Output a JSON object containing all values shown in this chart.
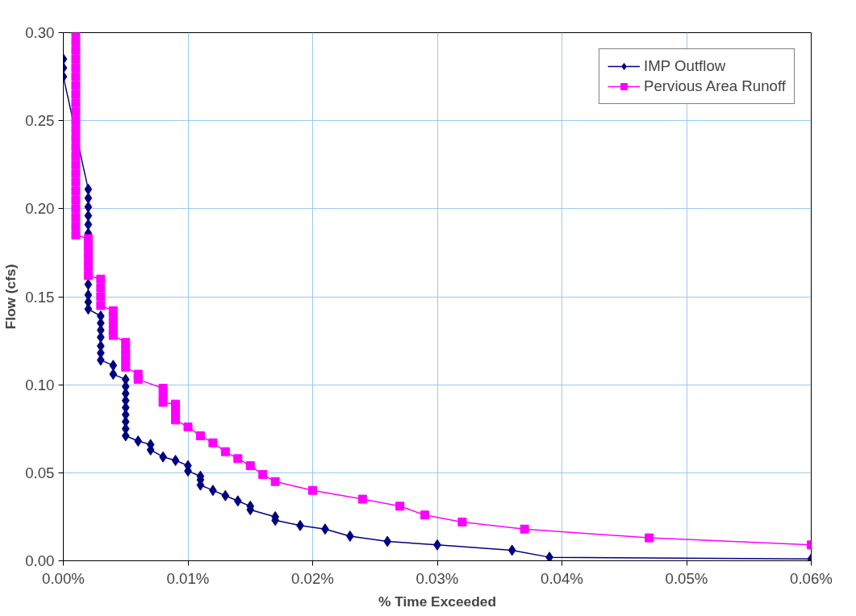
{
  "chart_data": {
    "type": "line",
    "xlabel": "% Time Exceeded",
    "ylabel": "Flow (cfs)",
    "xlim": [
      0,
      0.06
    ],
    "ylim": [
      0,
      0.3
    ],
    "xticks": [
      {
        "value": 0,
        "label": "0.00%"
      },
      {
        "value": 0.01,
        "label": "0.01%"
      },
      {
        "value": 0.02,
        "label": "0.02%"
      },
      {
        "value": 0.03,
        "label": "0.03%"
      },
      {
        "value": 0.04,
        "label": "0.04%"
      },
      {
        "value": 0.05,
        "label": "0.05%"
      },
      {
        "value": 0.06,
        "label": "0.06%"
      }
    ],
    "yticks": [
      {
        "value": 0,
        "label": "0.00"
      },
      {
        "value": 0.05,
        "label": "0.05"
      },
      {
        "value": 0.1,
        "label": "0.10"
      },
      {
        "value": 0.15,
        "label": "0.15"
      },
      {
        "value": 0.2,
        "label": "0.20"
      },
      {
        "value": 0.25,
        "label": "0.25"
      },
      {
        "value": 0.3,
        "label": "0.30"
      }
    ],
    "grid": true,
    "legend": "top right",
    "line_style": "solid",
    "series": [
      {
        "name": "IMP Outflow",
        "color": "#000080",
        "marker": "diamond",
        "x": [
          0,
          0,
          0,
          0.002,
          0.002,
          0.002,
          0.002,
          0.002,
          0.002,
          0.002,
          0.002,
          0.002,
          0.002,
          0.003,
          0.003,
          0.003,
          0.003,
          0.003,
          0.003,
          0.003,
          0.004,
          0.004,
          0.005,
          0.005,
          0.005,
          0.005,
          0.005,
          0.005,
          0.005,
          0.005,
          0.005,
          0.006,
          0.007,
          0.007,
          0.008,
          0.009,
          0.01,
          0.01,
          0.011,
          0.011,
          0.011,
          0.012,
          0.013,
          0.014,
          0.015,
          0.015,
          0.017,
          0.017,
          0.019,
          0.021,
          0.023,
          0.026,
          0.03,
          0.036,
          0.039,
          0.06
        ],
        "values": [
          0.285,
          0.28,
          0.275,
          0.211,
          0.206,
          0.201,
          0.196,
          0.191,
          0.186,
          0.157,
          0.151,
          0.147,
          0.143,
          0.139,
          0.135,
          0.131,
          0.127,
          0.122,
          0.118,
          0.114,
          0.111,
          0.106,
          0.103,
          0.099,
          0.095,
          0.091,
          0.087,
          0.083,
          0.079,
          0.075,
          0.071,
          0.068,
          0.066,
          0.063,
          0.059,
          0.057,
          0.054,
          0.051,
          0.048,
          0.046,
          0.043,
          0.04,
          0.037,
          0.034,
          0.031,
          0.029,
          0.025,
          0.023,
          0.02,
          0.018,
          0.014,
          0.011,
          0.009,
          0.006,
          0.002,
          0.001
        ]
      },
      {
        "name": "Pervious Area Runoff",
        "color": "#ff00ff",
        "marker": "square",
        "x": [
          0.001,
          0.001,
          0.001,
          0.001,
          0.001,
          0.001,
          0.001,
          0.001,
          0.001,
          0.001,
          0.001,
          0.001,
          0.001,
          0.001,
          0.001,
          0.001,
          0.001,
          0.001,
          0.001,
          0.001,
          0.001,
          0.001,
          0.001,
          0.001,
          0.002,
          0.002,
          0.002,
          0.002,
          0.002,
          0.002,
          0.003,
          0.003,
          0.003,
          0.003,
          0.004,
          0.004,
          0.004,
          0.004,
          0.004,
          0.005,
          0.005,
          0.005,
          0.005,
          0.005,
          0.006,
          0.006,
          0.008,
          0.008,
          0.008,
          0.009,
          0.009,
          0.009,
          0.009,
          0.01,
          0.011,
          0.012,
          0.013,
          0.014,
          0.015,
          0.016,
          0.017,
          0.02,
          0.024,
          0.027,
          0.029,
          0.032,
          0.037,
          0.047,
          0.06
        ],
        "values": [
          0.3,
          0.295,
          0.29,
          0.285,
          0.28,
          0.275,
          0.27,
          0.265,
          0.26,
          0.255,
          0.25,
          0.245,
          0.24,
          0.235,
          0.23,
          0.225,
          0.22,
          0.215,
          0.21,
          0.205,
          0.2,
          0.195,
          0.19,
          0.185,
          0.183,
          0.179,
          0.175,
          0.171,
          0.167,
          0.162,
          0.16,
          0.155,
          0.15,
          0.145,
          0.142,
          0.139,
          0.135,
          0.131,
          0.128,
          0.124,
          0.12,
          0.117,
          0.113,
          0.11,
          0.106,
          0.103,
          0.098,
          0.094,
          0.09,
          0.089,
          0.086,
          0.083,
          0.08,
          0.076,
          0.071,
          0.067,
          0.062,
          0.058,
          0.054,
          0.049,
          0.045,
          0.04,
          0.035,
          0.031,
          0.026,
          0.022,
          0.018,
          0.013,
          0.009
        ]
      }
    ]
  }
}
